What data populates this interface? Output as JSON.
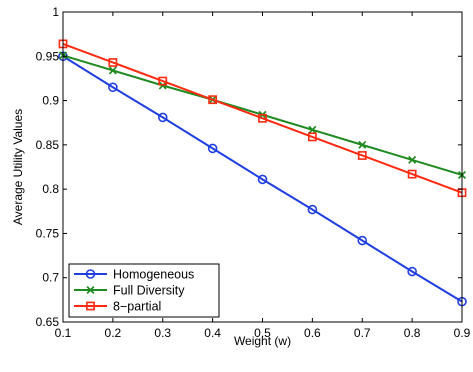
{
  "chart_data": {
    "type": "line",
    "title": "",
    "xlabel": "Weight (w)",
    "ylabel": "Average Utility Values",
    "x": [
      0.1,
      0.2,
      0.3,
      0.4,
      0.5,
      0.6,
      0.7,
      0.8,
      0.9
    ],
    "xlim": [
      0.1,
      0.9
    ],
    "ylim": [
      0.65,
      1.0
    ],
    "x_ticks": [
      "0.1",
      "0.2",
      "0.3",
      "0.4",
      "0.5",
      "0.6",
      "0.7",
      "0.8",
      "0.9"
    ],
    "y_ticks": [
      "0.65",
      "0.7",
      "0.75",
      "0.8",
      "0.85",
      "0.9",
      "0.95",
      "1"
    ],
    "grid": false,
    "legend_position": "bottom-left",
    "series": [
      {
        "name": "Homogeneous",
        "color": "#1f3fe0",
        "marker": "circle",
        "values": [
          0.95,
          0.915,
          0.881,
          0.846,
          0.811,
          0.777,
          0.742,
          0.707,
          0.673
        ]
      },
      {
        "name": "Full Diversity",
        "color": "#1f8a1f",
        "marker": "x",
        "values": [
          0.951,
          0.934,
          0.917,
          0.901,
          0.884,
          0.867,
          0.85,
          0.833,
          0.816
        ]
      },
      {
        "name": "8−partial",
        "color": "#ff2a10",
        "marker": "square",
        "values": [
          0.964,
          0.943,
          0.922,
          0.901,
          0.88,
          0.859,
          0.838,
          0.817,
          0.796
        ]
      }
    ]
  }
}
